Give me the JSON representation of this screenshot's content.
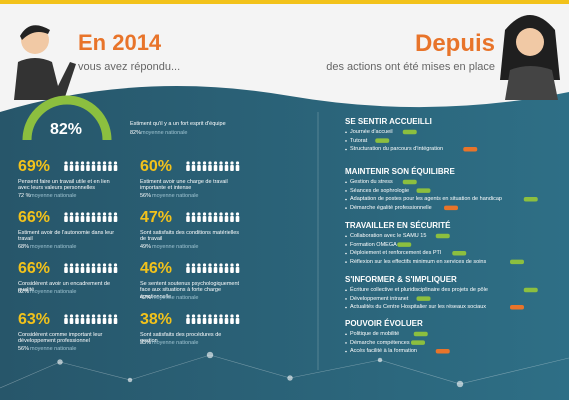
{
  "header": {
    "left_title": "En 2014",
    "left_subtitle": "vous avez répondu...",
    "right_title": "Depuis",
    "right_subtitle": "des actions ont été mises en place"
  },
  "gauge": {
    "value": "82%",
    "text": "Estiment qu'il y a un fort esprit d'équipe",
    "national": "82%",
    "national_label": "moyenne nationale"
  },
  "stats": [
    {
      "value": "69%",
      "text": "Pensent faire un travail utile et en lien avec leurs valeurs personnelles",
      "national": "72 %",
      "national_label": "moyenne nationale"
    },
    {
      "value": "60%",
      "text": "Estiment avoir une charge de travail importante et intense",
      "national": "56%",
      "national_label": "moyenne nationale"
    },
    {
      "value": "66%",
      "text": "Estiment avoir de l'autonomie dans leur travail",
      "national": "68%",
      "national_label": "moyenne nationale"
    },
    {
      "value": "47%",
      "text": "Sont satisfaits des conditions matérielles de travail",
      "national": "49%",
      "national_label": "moyenne nationale"
    },
    {
      "value": "66%",
      "text": "Considèrent avoir un encadrement de qualité",
      "national": "62%",
      "national_label": "moyenne nationale"
    },
    {
      "value": "46%",
      "text": "Se sentent soutenus psychologiquement face aux situations à forte charge émotionnelle",
      "national": "42%",
      "national_label": "moyenne nationale"
    },
    {
      "value": "63%",
      "text": "Considèrent comme important leur développement professionnel",
      "national": "56%",
      "national_label": "moyenne nationale"
    },
    {
      "value": "38%",
      "text": "Sont satisfaits des procédures de gestion",
      "national": "33%",
      "national_label": "moyenne nationale"
    }
  ],
  "sections": [
    {
      "title": "SE SENTIR ACCUEILLI",
      "items": [
        "Journée d'accueil",
        "Tutorat",
        "Structuration du parcours d'intégration"
      ]
    },
    {
      "title": "MAINTENIR SON ÉQUILIBRE",
      "items": [
        "Gestion du stress",
        "Séances de sophrologie",
        "Adaptation de postes pour les agents en situation de handicap",
        "Démarche égalité professionnelle"
      ]
    },
    {
      "title": "TRAVAILLER EN SÉCURITÉ",
      "items": [
        "Collaboration avec le SAMU 15",
        "Formation OMEGA",
        "Déploiement et renforcement des PTI",
        "Réflexion sur les effectifs minimum en services de soins"
      ]
    },
    {
      "title": "S'INFORMER & S'IMPLIQUER",
      "items": [
        "Écriture collective et pluridisciplinaire des projets de pôle",
        "Développement intranet",
        "Actualités du Centre Hospitalier sur les réseaux sociaux"
      ]
    },
    {
      "title": "POUVOIR ÉVOLUER",
      "items": [
        "Politique de mobilité",
        "Démarche compétences",
        "Accès facilité à la formation"
      ]
    }
  ]
}
